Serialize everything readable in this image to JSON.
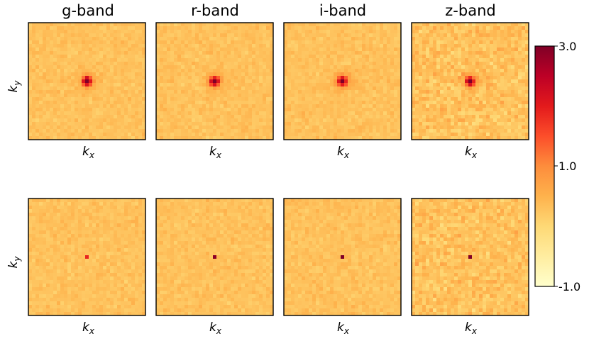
{
  "chart_data": {
    "type": "heatmap",
    "layout": {
      "rows": 2,
      "cols": 4
    },
    "column_titles": [
      "g-band",
      "r-band",
      "i-band",
      "z-band"
    ],
    "xlabel": "k_x",
    "ylabel": "k_y",
    "colormap": "YlOrRd",
    "colorbar": {
      "vmin": -1.0,
      "vmax": 3.0,
      "ticks": [
        3.0,
        1.0,
        -1.0
      ],
      "tick_labels": [
        "3.0",
        "1.0",
        "-1.0"
      ],
      "placement": "right",
      "scale": "log"
    },
    "grid": false,
    "panels": [
      {
        "row": 0,
        "band": "g-band",
        "background_level": 0.3,
        "noise": 0.07,
        "peak_level": 3.0,
        "peak_spread": "wide"
      },
      {
        "row": 0,
        "band": "r-band",
        "background_level": 0.3,
        "noise": 0.07,
        "peak_level": 3.0,
        "peak_spread": "wide"
      },
      {
        "row": 0,
        "band": "i-band",
        "background_level": 0.3,
        "noise": 0.07,
        "peak_level": 3.0,
        "peak_spread": "wide"
      },
      {
        "row": 0,
        "band": "z-band",
        "background_level": 0.3,
        "noise": 0.13,
        "peak_level": 2.8,
        "peak_spread": "wide"
      },
      {
        "row": 1,
        "band": "g-band",
        "background_level": 0.3,
        "noise": 0.07,
        "peak_level": 1.9,
        "peak_spread": "single"
      },
      {
        "row": 1,
        "band": "r-band",
        "background_level": 0.3,
        "noise": 0.07,
        "peak_level": 2.9,
        "peak_spread": "single"
      },
      {
        "row": 1,
        "band": "i-band",
        "background_level": 0.3,
        "noise": 0.07,
        "peak_level": 3.0,
        "peak_spread": "single"
      },
      {
        "row": 1,
        "band": "z-band",
        "background_level": 0.3,
        "noise": 0.13,
        "peak_level": 3.0,
        "peak_spread": "single"
      }
    ]
  }
}
